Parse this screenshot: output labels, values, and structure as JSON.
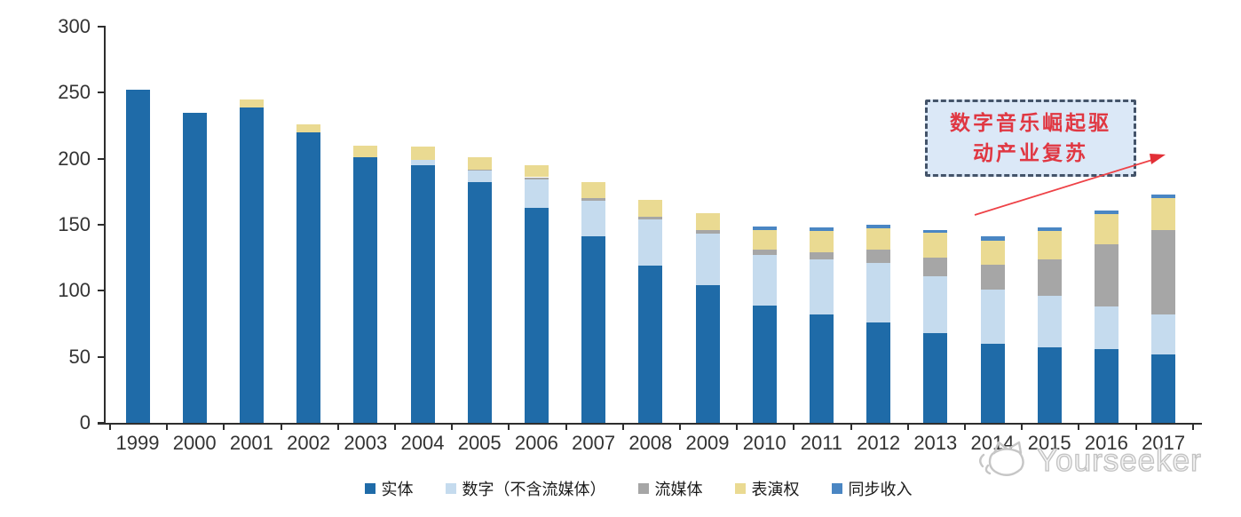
{
  "chart_data": {
    "type": "bar",
    "stacked": true,
    "title": "",
    "xlabel": "",
    "ylabel": "",
    "ylim": [
      0,
      300
    ],
    "y_ticks": [
      0,
      50,
      100,
      150,
      200,
      250,
      300
    ],
    "grid": false,
    "legend_position": "bottom",
    "categories": [
      "1999",
      "2000",
      "2001",
      "2002",
      "2003",
      "2004",
      "2005",
      "2006",
      "2007",
      "2008",
      "2009",
      "2010",
      "2011",
      "2012",
      "2013",
      "2014",
      "2015",
      "2016",
      "2017"
    ],
    "series": [
      {
        "name": "实体",
        "color": "#1f6ba8",
        "values": [
          252,
          235,
          239,
          220,
          201,
          195,
          182,
          163,
          141,
          119,
          104,
          89,
          82,
          76,
          68,
          60,
          57,
          56,
          52
        ]
      },
      {
        "name": "数字（不含流媒体）",
        "color": "#c5dbee",
        "values": [
          0,
          0,
          0,
          0,
          0,
          4,
          9,
          21,
          27,
          35,
          39,
          38,
          42,
          45,
          43,
          41,
          39,
          32,
          30
        ]
      },
      {
        "name": "流媒体",
        "color": "#a6a6a6",
        "values": [
          0,
          0,
          0,
          0,
          0,
          0,
          1,
          2,
          2,
          2,
          3,
          4,
          5,
          10,
          14,
          19,
          28,
          47,
          64
        ]
      },
      {
        "name": "表演权",
        "color": "#eada92",
        "values": [
          0,
          0,
          6,
          6,
          9,
          10,
          9,
          9,
          12,
          13,
          13,
          15,
          16,
          16,
          19,
          18,
          21,
          23,
          24
        ]
      },
      {
        "name": "同步收入",
        "color": "#4a86c3",
        "values": [
          0,
          0,
          0,
          0,
          0,
          0,
          0,
          0,
          0,
          0,
          0,
          3,
          3,
          3,
          2,
          3,
          3,
          3,
          3
        ]
      }
    ]
  },
  "annotation": {
    "line1": "数字音乐崛起驱",
    "line2": "动产业复苏",
    "text_color": "#e03742",
    "border_color": "#44546a",
    "fill_color": "#dbe8f7",
    "arrow_color": "#ee4247"
  },
  "watermark": {
    "text": "Yourseeker"
  }
}
